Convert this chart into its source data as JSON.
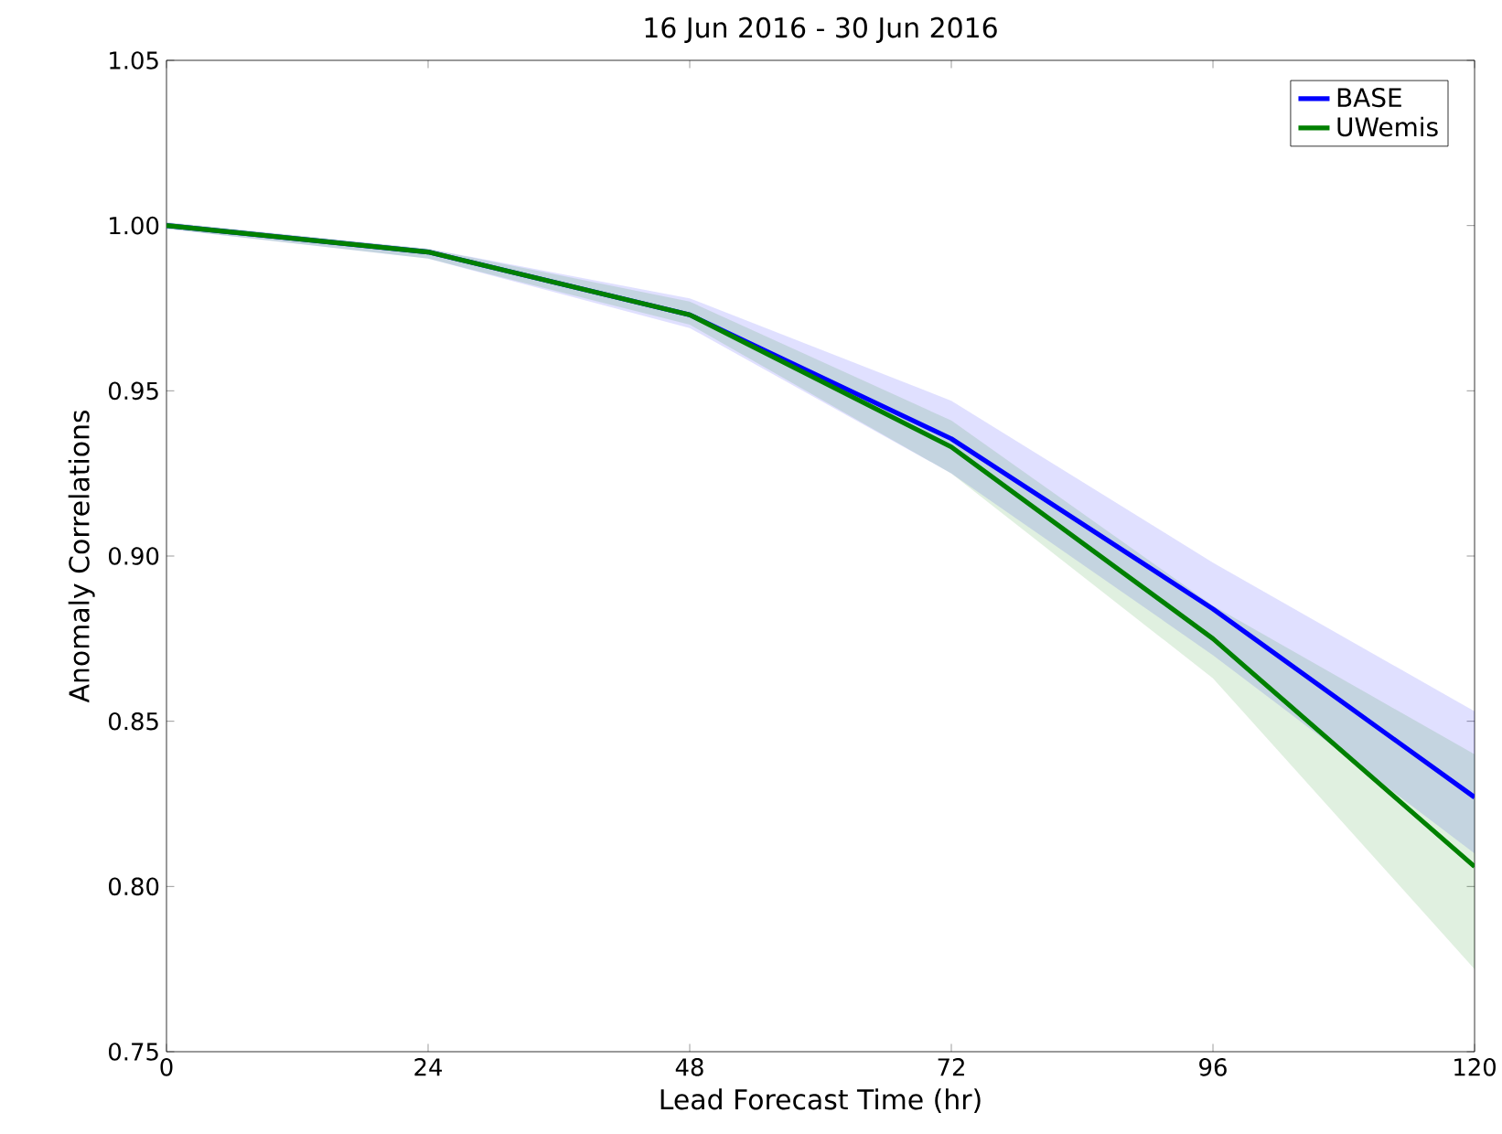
{
  "chart_data": {
    "type": "line",
    "title": "16 Jun 2016 - 30 Jun 2016",
    "xlabel": "Lead Forecast Time (hr)",
    "ylabel": "Anomaly Correlations",
    "x": [
      0,
      24,
      48,
      72,
      96,
      120
    ],
    "series": [
      {
        "name": "BASE",
        "color": "#0000ff",
        "values": [
          1.0,
          0.992,
          0.973,
          0.9355,
          0.884,
          0.827
        ],
        "lower": [
          0.999,
          0.99,
          0.969,
          0.925,
          0.87,
          0.81
        ],
        "upper": [
          1.001,
          0.993,
          0.978,
          0.947,
          0.898,
          0.853
        ]
      },
      {
        "name": "UWemis",
        "color": "#008000",
        "values": [
          1.0,
          0.992,
          0.973,
          0.933,
          0.875,
          0.806
        ],
        "lower": [
          0.999,
          0.99,
          0.97,
          0.925,
          0.863,
          0.775
        ],
        "upper": [
          1.001,
          0.993,
          0.977,
          0.941,
          0.885,
          0.84
        ]
      }
    ],
    "xlim": [
      0,
      120
    ],
    "ylim": [
      0.75,
      1.05
    ],
    "xticks": [
      0,
      24,
      48,
      72,
      96,
      120
    ],
    "yticks": [
      {
        "value": 0.75,
        "label": "0.75"
      },
      {
        "value": 0.8,
        "label": "0.80"
      },
      {
        "value": 0.85,
        "label": "0.85"
      },
      {
        "value": 0.9,
        "label": "0.90"
      },
      {
        "value": 0.95,
        "label": "0.95"
      },
      {
        "value": 1.0,
        "label": "1.00"
      },
      {
        "value": 1.05,
        "label": "1.05"
      }
    ],
    "grid": false,
    "legend": "top right",
    "marker": "none",
    "line_style": "solid"
  }
}
